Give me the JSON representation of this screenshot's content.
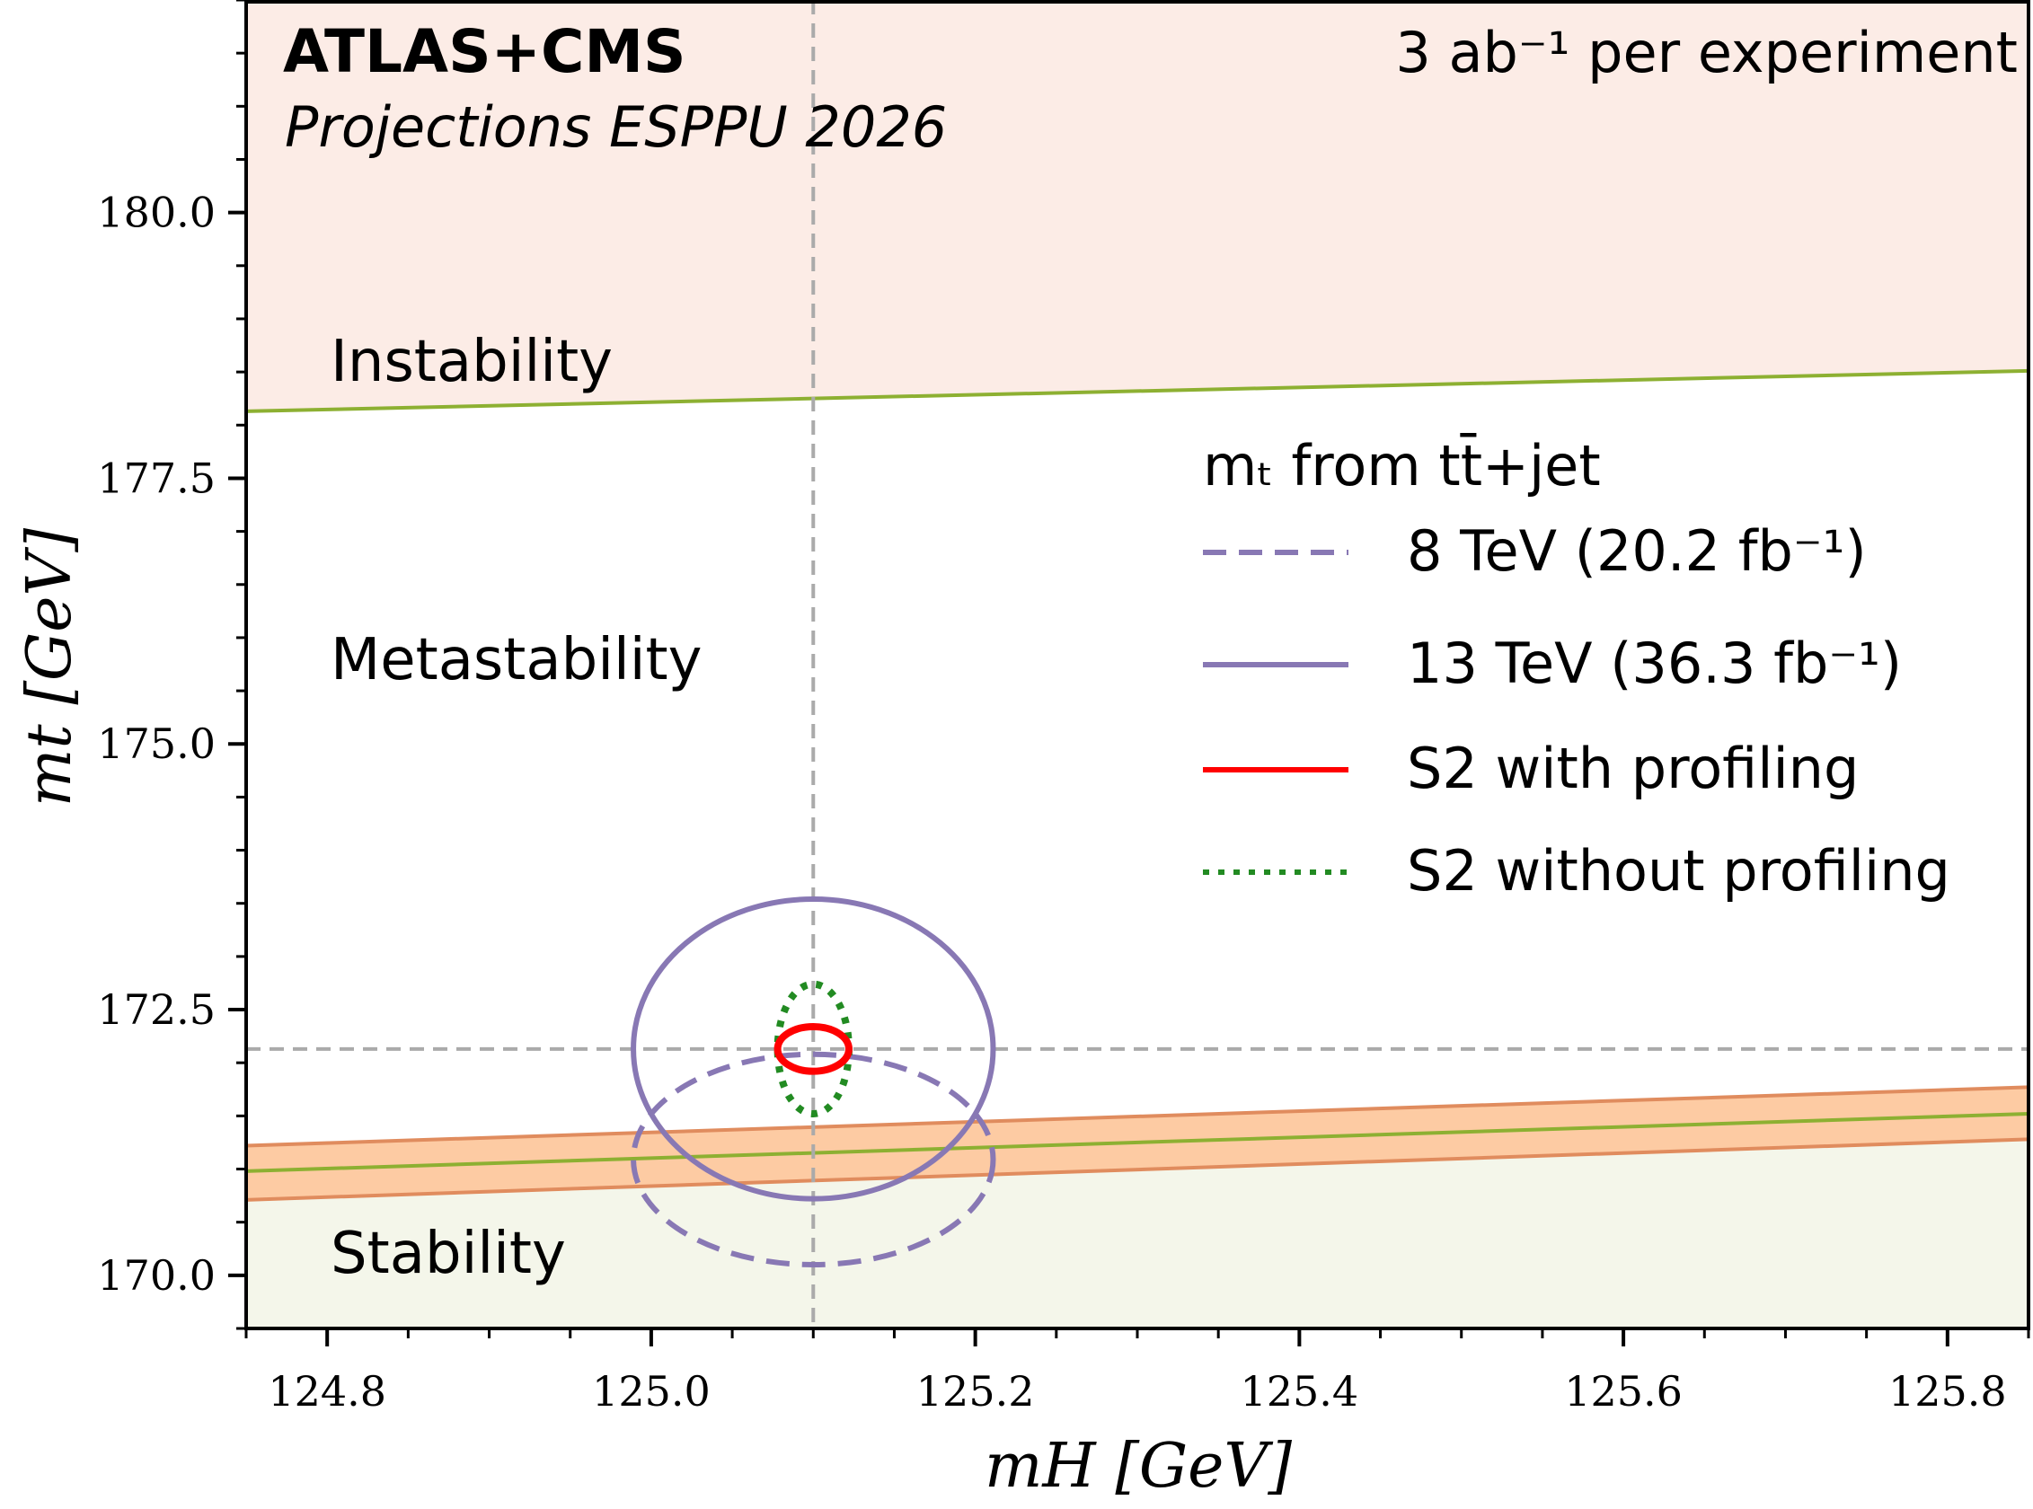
{
  "chart_data": {
    "type": "line",
    "title": "ATLAS+CMS",
    "subtitle": "Projections ESPPU 2026",
    "annotation": "3 ab⁻¹ per experiment",
    "xlabel": "mH [GeV]",
    "ylabel": "mt [GeV]",
    "xlim": [
      124.75,
      125.85
    ],
    "ylim": [
      169.5,
      182.0
    ],
    "xticks": [
      124.8,
      125.0,
      125.2,
      125.4,
      125.6,
      125.8
    ],
    "xtick_labels": [
      "124.8",
      "125.0",
      "125.2",
      "125.4",
      "125.6",
      "125.8"
    ],
    "yticks": [
      170.0,
      172.5,
      175.0,
      177.5,
      180.0
    ],
    "ytick_labels": [
      "170.0",
      "172.5",
      "175.0",
      "177.5",
      "180.0"
    ],
    "grid": false,
    "regions": {
      "instability": {
        "label": "Instability",
        "boundary": [
          [
            124.75,
            178.13
          ],
          [
            125.85,
            178.51
          ]
        ],
        "color": "#fcece6",
        "line_color": "#8db032"
      },
      "metastability": {
        "label": "Metastability"
      },
      "stability": {
        "label": "Stability",
        "color": "#f4f6ea"
      },
      "stability_band": {
        "center": [
          [
            124.75,
            170.98
          ],
          [
            125.85,
            171.52
          ]
        ],
        "upper": [
          [
            124.75,
            171.22
          ],
          [
            125.85,
            171.77
          ]
        ],
        "lower": [
          [
            124.75,
            170.71
          ],
          [
            125.85,
            171.28
          ]
        ],
        "fill": "#fdcba3",
        "edge": "#e08c5e",
        "line_color": "#8db032"
      }
    },
    "reference": {
      "mH": 125.1,
      "mt": 172.13,
      "color": "#aaaaaa"
    },
    "legend": {
      "title": "mₜ from tt̄+jet",
      "placement": "center-right",
      "entries": [
        {
          "name": "8 TeV (20.2 fb⁻¹)",
          "style": "dashed",
          "color": "#8878b4",
          "center": [
            125.1,
            171.09
          ],
          "half_widths": [
            0.111,
            0.99
          ]
        },
        {
          "name": "13 TeV (36.3 fb⁻¹)",
          "style": "solid",
          "color": "#8878b4",
          "center": [
            125.1,
            172.13
          ],
          "half_widths": [
            0.111,
            1.41
          ]
        },
        {
          "name": "S2 with profiling",
          "style": "solid",
          "color": "#ff0000",
          "center": [
            125.1,
            172.13
          ],
          "half_widths": [
            0.022,
            0.21
          ]
        },
        {
          "name": "S2 without profiling",
          "style": "dotted",
          "color": "#228b22",
          "center": [
            125.1,
            172.13
          ],
          "half_widths": [
            0.022,
            0.61
          ]
        }
      ]
    }
  }
}
